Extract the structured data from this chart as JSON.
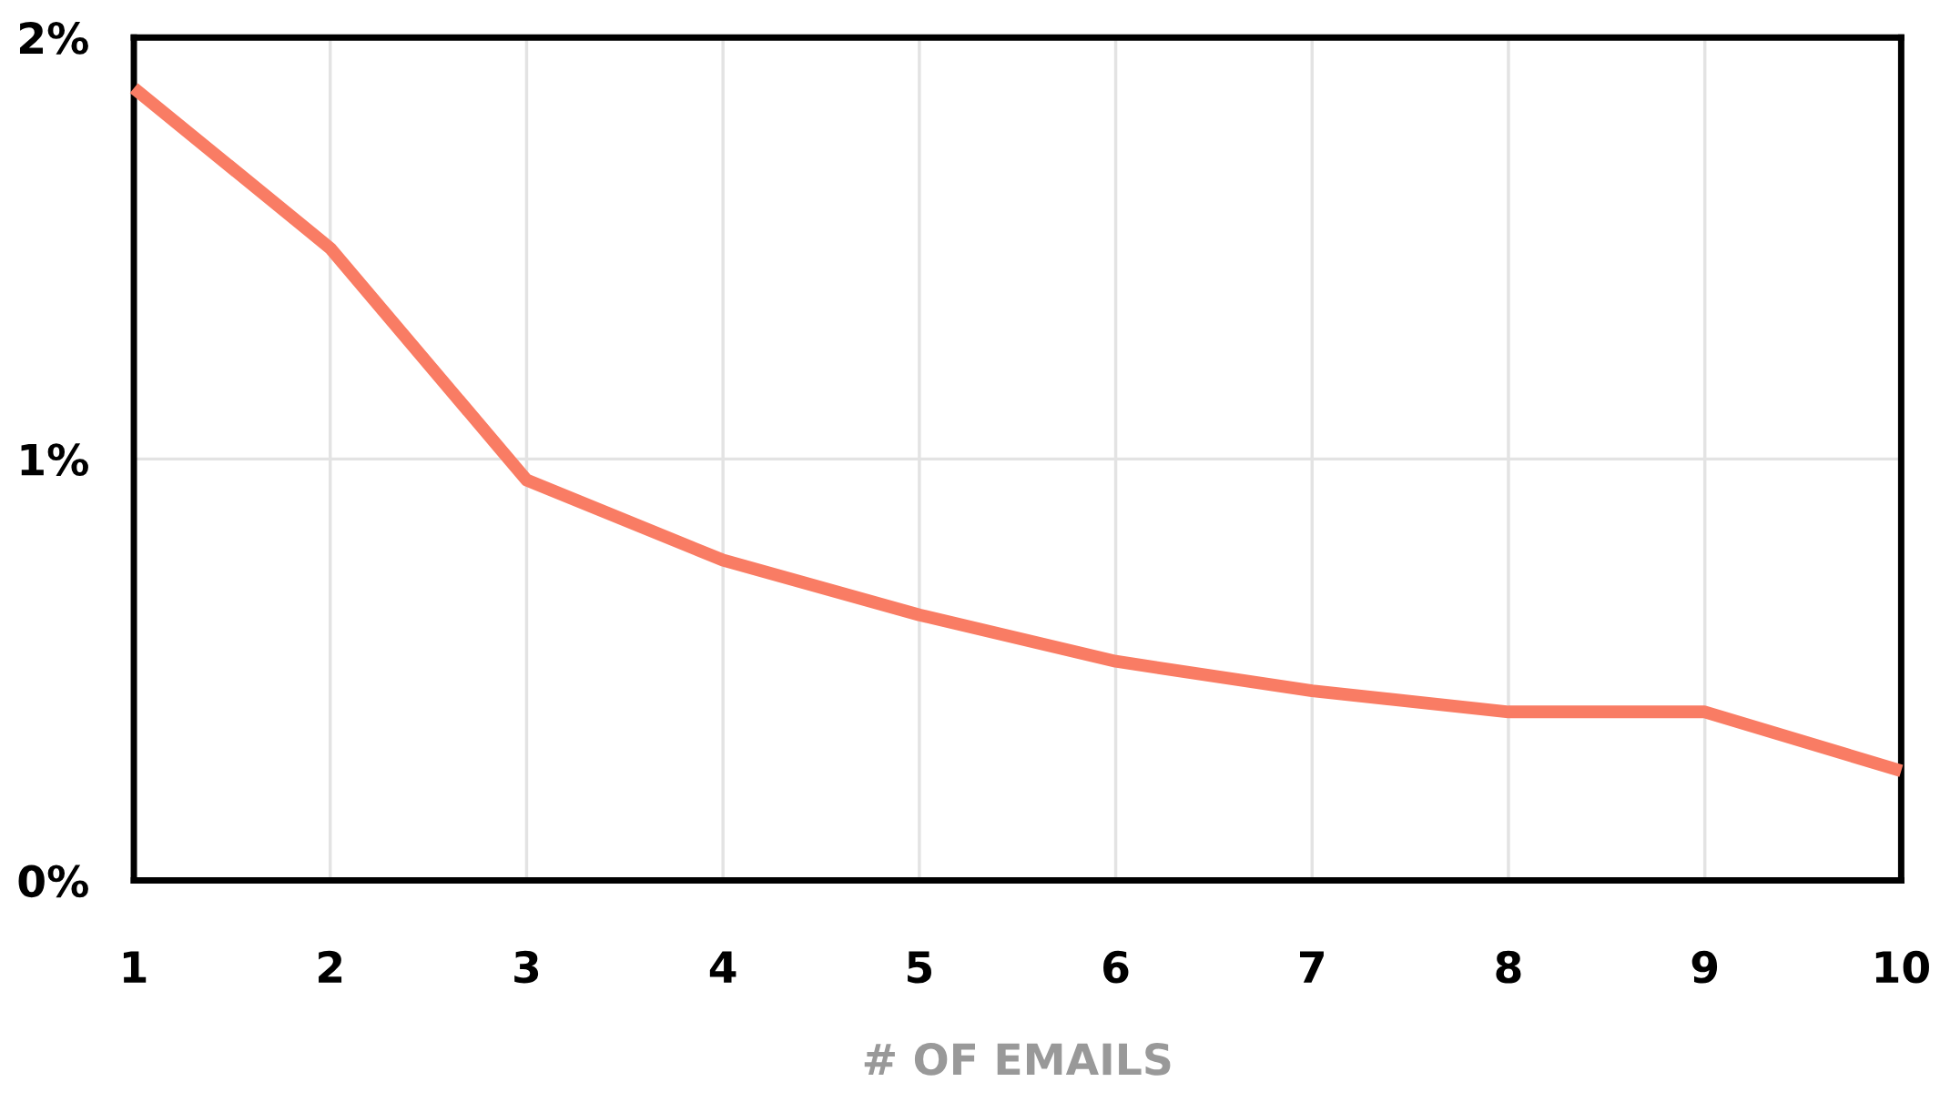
{
  "chart_data": {
    "type": "line",
    "xlabel": "# OF EMAILS",
    "x": [
      1,
      2,
      3,
      4,
      5,
      6,
      7,
      8,
      9,
      10
    ],
    "series": [
      {
        "color": "#f97c64",
        "values": [
          1.88,
          1.5,
          0.95,
          0.76,
          0.63,
          0.52,
          0.45,
          0.4,
          0.4,
          0.26
        ]
      }
    ],
    "xlim": [
      1,
      10
    ],
    "xticks": [
      1,
      2,
      3,
      4,
      5,
      6,
      7,
      8,
      9,
      10
    ],
    "ylim": [
      0,
      2
    ],
    "yticks": [
      {
        "value": 0,
        "label": "0%"
      },
      {
        "value": 1,
        "label": "1%"
      },
      {
        "value": 2,
        "label": "2%"
      }
    ],
    "grid": true,
    "marker": "none",
    "line_style": "solid"
  }
}
